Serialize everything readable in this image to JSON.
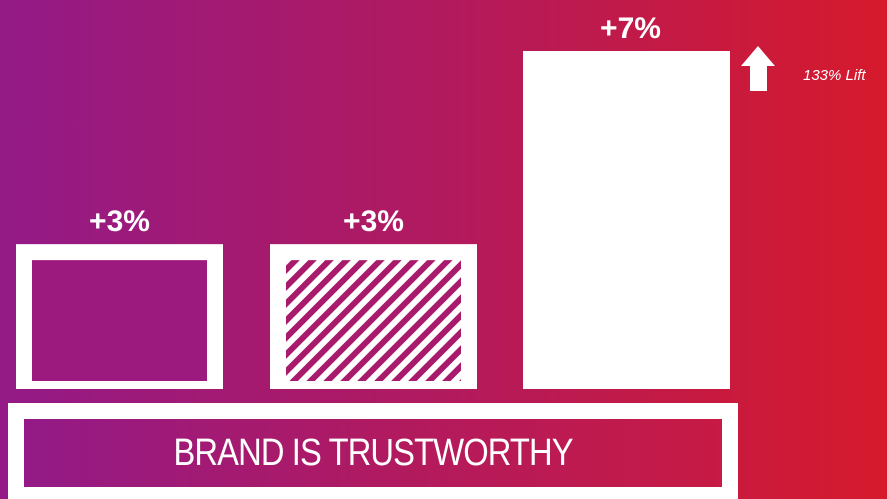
{
  "chart_data": {
    "type": "bar",
    "categories": [
      "",
      "",
      ""
    ],
    "values": [
      3,
      3,
      7
    ],
    "value_labels": [
      "+3%",
      "+3%",
      "+7%"
    ],
    "styles": [
      "outline",
      "hatched",
      "solid"
    ],
    "title": "",
    "xlabel": "",
    "ylabel": "",
    "ylim": [
      0,
      7
    ],
    "grid": false,
    "annotation": "133% Lift"
  },
  "footer": {
    "label": "BRAND IS TRUSTWORTHY"
  },
  "colors": {
    "accent_left": "#931a87",
    "accent_right": "#d61a2c",
    "bar": "#ffffff"
  }
}
